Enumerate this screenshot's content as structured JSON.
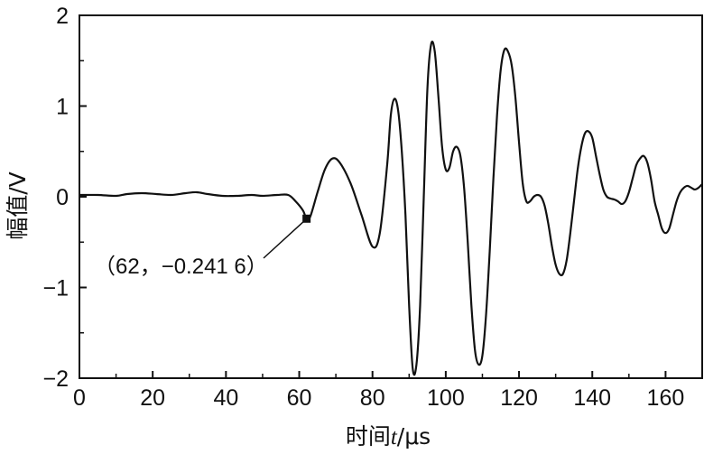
{
  "chart_data": {
    "type": "line",
    "xlabel_prefix": "时间",
    "xlabel_var": "t",
    "xlabel_unit": "/μs",
    "ylabel": "幅值/V",
    "xlim": [
      0,
      170
    ],
    "ylim": [
      -2,
      2
    ],
    "grid": false,
    "x_ticks": [
      0,
      20,
      40,
      60,
      80,
      100,
      120,
      140,
      160
    ],
    "y_ticks": [
      2,
      1,
      0,
      -1,
      -2
    ],
    "x_tick_labels": [
      "0",
      "20",
      "40",
      "60",
      "80",
      "100",
      "120",
      "140",
      "160"
    ],
    "y_tick_labels": [
      "2",
      "1",
      "0",
      "−1",
      "−2"
    ],
    "series": [
      {
        "x": [
          0,
          5,
          10,
          13,
          17,
          21,
          25,
          29,
          32,
          35,
          39,
          43,
          47,
          50,
          54,
          57,
          59,
          61,
          62,
          63,
          65,
          67,
          69,
          71,
          74,
          77,
          80,
          82,
          84,
          85,
          86,
          87,
          88,
          89,
          90,
          91,
          92,
          93,
          94,
          95,
          96,
          97,
          98,
          99,
          100,
          101,
          102,
          103,
          104,
          105,
          106,
          107,
          108,
          109,
          110,
          111,
          112,
          113,
          114,
          115,
          116,
          117,
          118,
          119,
          120,
          121,
          122,
          123,
          124,
          125,
          126,
          127,
          128,
          129,
          130,
          131,
          132,
          133,
          134,
          135,
          136,
          137,
          138,
          139,
          140,
          141,
          142,
          143,
          144,
          145,
          146,
          147,
          148,
          149,
          150,
          151,
          152,
          153,
          154,
          155,
          156,
          157,
          158,
          159,
          160,
          161,
          162,
          163,
          164,
          165,
          166,
          167,
          168,
          169,
          170
        ],
        "y": [
          0.02,
          0.02,
          0.01,
          0.03,
          0.04,
          0.03,
          0.02,
          0.04,
          0.05,
          0.03,
          0.01,
          0.01,
          0.02,
          0.01,
          0.02,
          0.02,
          -0.05,
          -0.15,
          -0.2416,
          -0.22,
          0.05,
          0.3,
          0.42,
          0.38,
          0.15,
          -0.2,
          -0.55,
          -0.4,
          0.35,
          0.9,
          1.08,
          0.95,
          0.5,
          -0.2,
          -1.2,
          -1.9,
          -1.85,
          -1.2,
          0.0,
          1.2,
          1.68,
          1.6,
          1.1,
          0.55,
          0.3,
          0.32,
          0.5,
          0.55,
          0.45,
          0.1,
          -0.5,
          -1.2,
          -1.7,
          -1.85,
          -1.75,
          -1.3,
          -0.6,
          0.2,
          0.9,
          1.4,
          1.62,
          1.6,
          1.45,
          1.1,
          0.6,
          0.15,
          -0.05,
          -0.05,
          0.0,
          0.02,
          0.0,
          -0.1,
          -0.3,
          -0.55,
          -0.75,
          -0.85,
          -0.85,
          -0.7,
          -0.4,
          -0.05,
          0.3,
          0.55,
          0.7,
          0.72,
          0.65,
          0.45,
          0.25,
          0.08,
          0.0,
          -0.02,
          -0.03,
          -0.05,
          -0.08,
          -0.05,
          0.05,
          0.2,
          0.35,
          0.42,
          0.45,
          0.38,
          0.2,
          -0.05,
          -0.2,
          -0.35,
          -0.4,
          -0.35,
          -0.2,
          -0.05,
          0.05,
          0.1,
          0.12,
          0.1,
          0.08,
          0.1,
          0.14
        ]
      }
    ],
    "annotation": {
      "x": 62,
      "y": -0.2416,
      "text": "（62，−0.241 6）"
    }
  }
}
